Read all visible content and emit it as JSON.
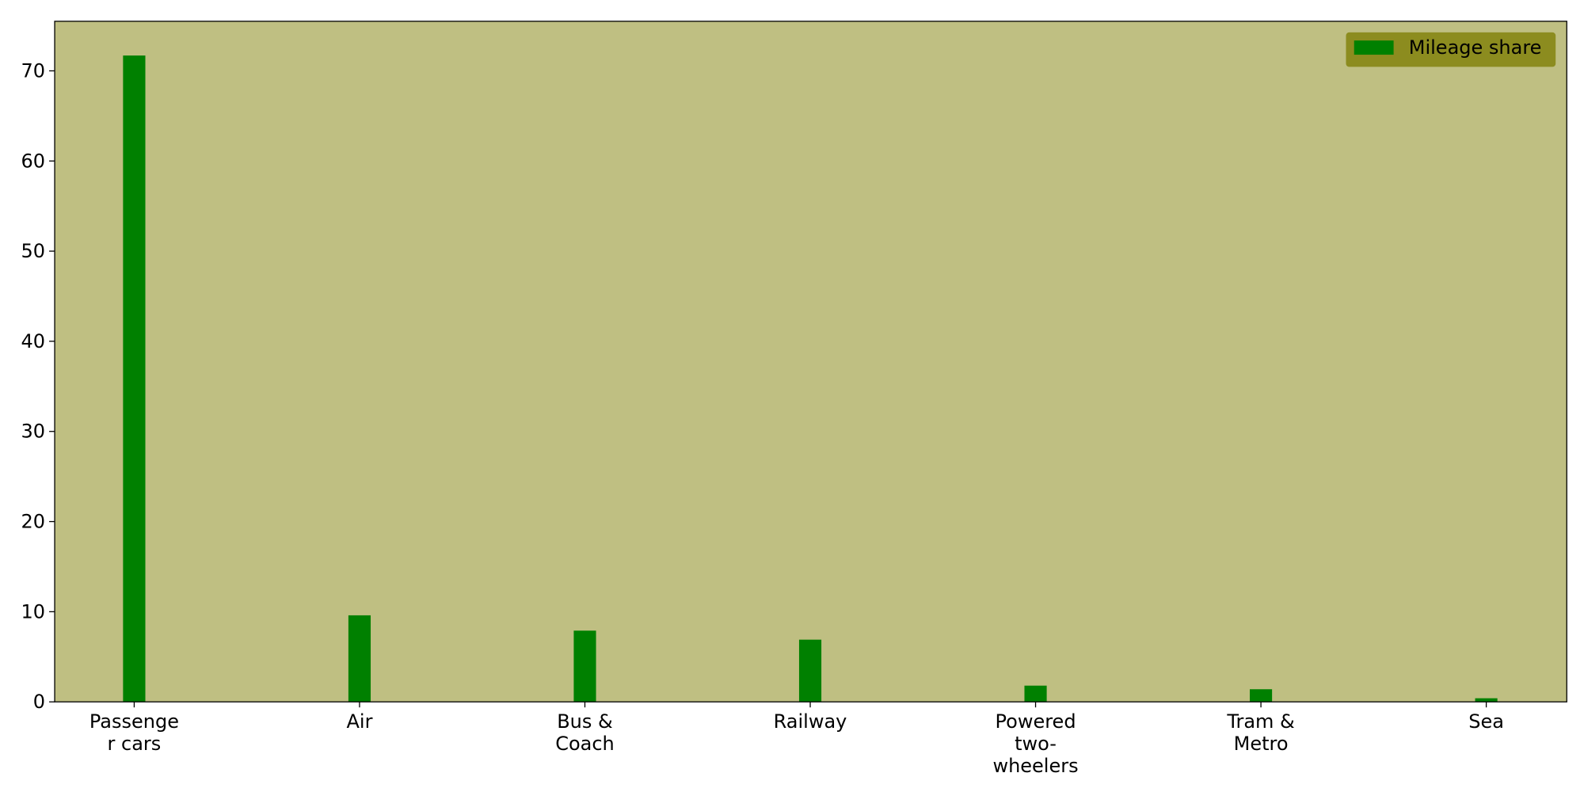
{
  "chart_data": {
    "type": "bar",
    "title": "",
    "xlabel": "",
    "ylabel": "",
    "categories": [
      [
        "Passenge",
        "r cars"
      ],
      [
        "Air"
      ],
      [
        "Bus &",
        "Coach"
      ],
      [
        "Railway"
      ],
      [
        "Powered",
        "two-",
        "wheelers"
      ],
      [
        "Tram &",
        "Metro"
      ],
      [
        "Sea"
      ]
    ],
    "series": [
      {
        "name": "Mileage share",
        "values": [
          71.7,
          9.6,
          7.9,
          6.9,
          1.8,
          1.4,
          0.4
        ],
        "color": "#008000"
      }
    ],
    "ylim": [
      0,
      75.5
    ],
    "yticks": [
      0,
      10,
      20,
      30,
      40,
      50,
      60,
      70
    ],
    "grid": false,
    "legend_position": "top-right",
    "colors": {
      "plot_background": "#bfbf82",
      "legend_background": "#8c8c1f",
      "axis": "#000000"
    }
  }
}
